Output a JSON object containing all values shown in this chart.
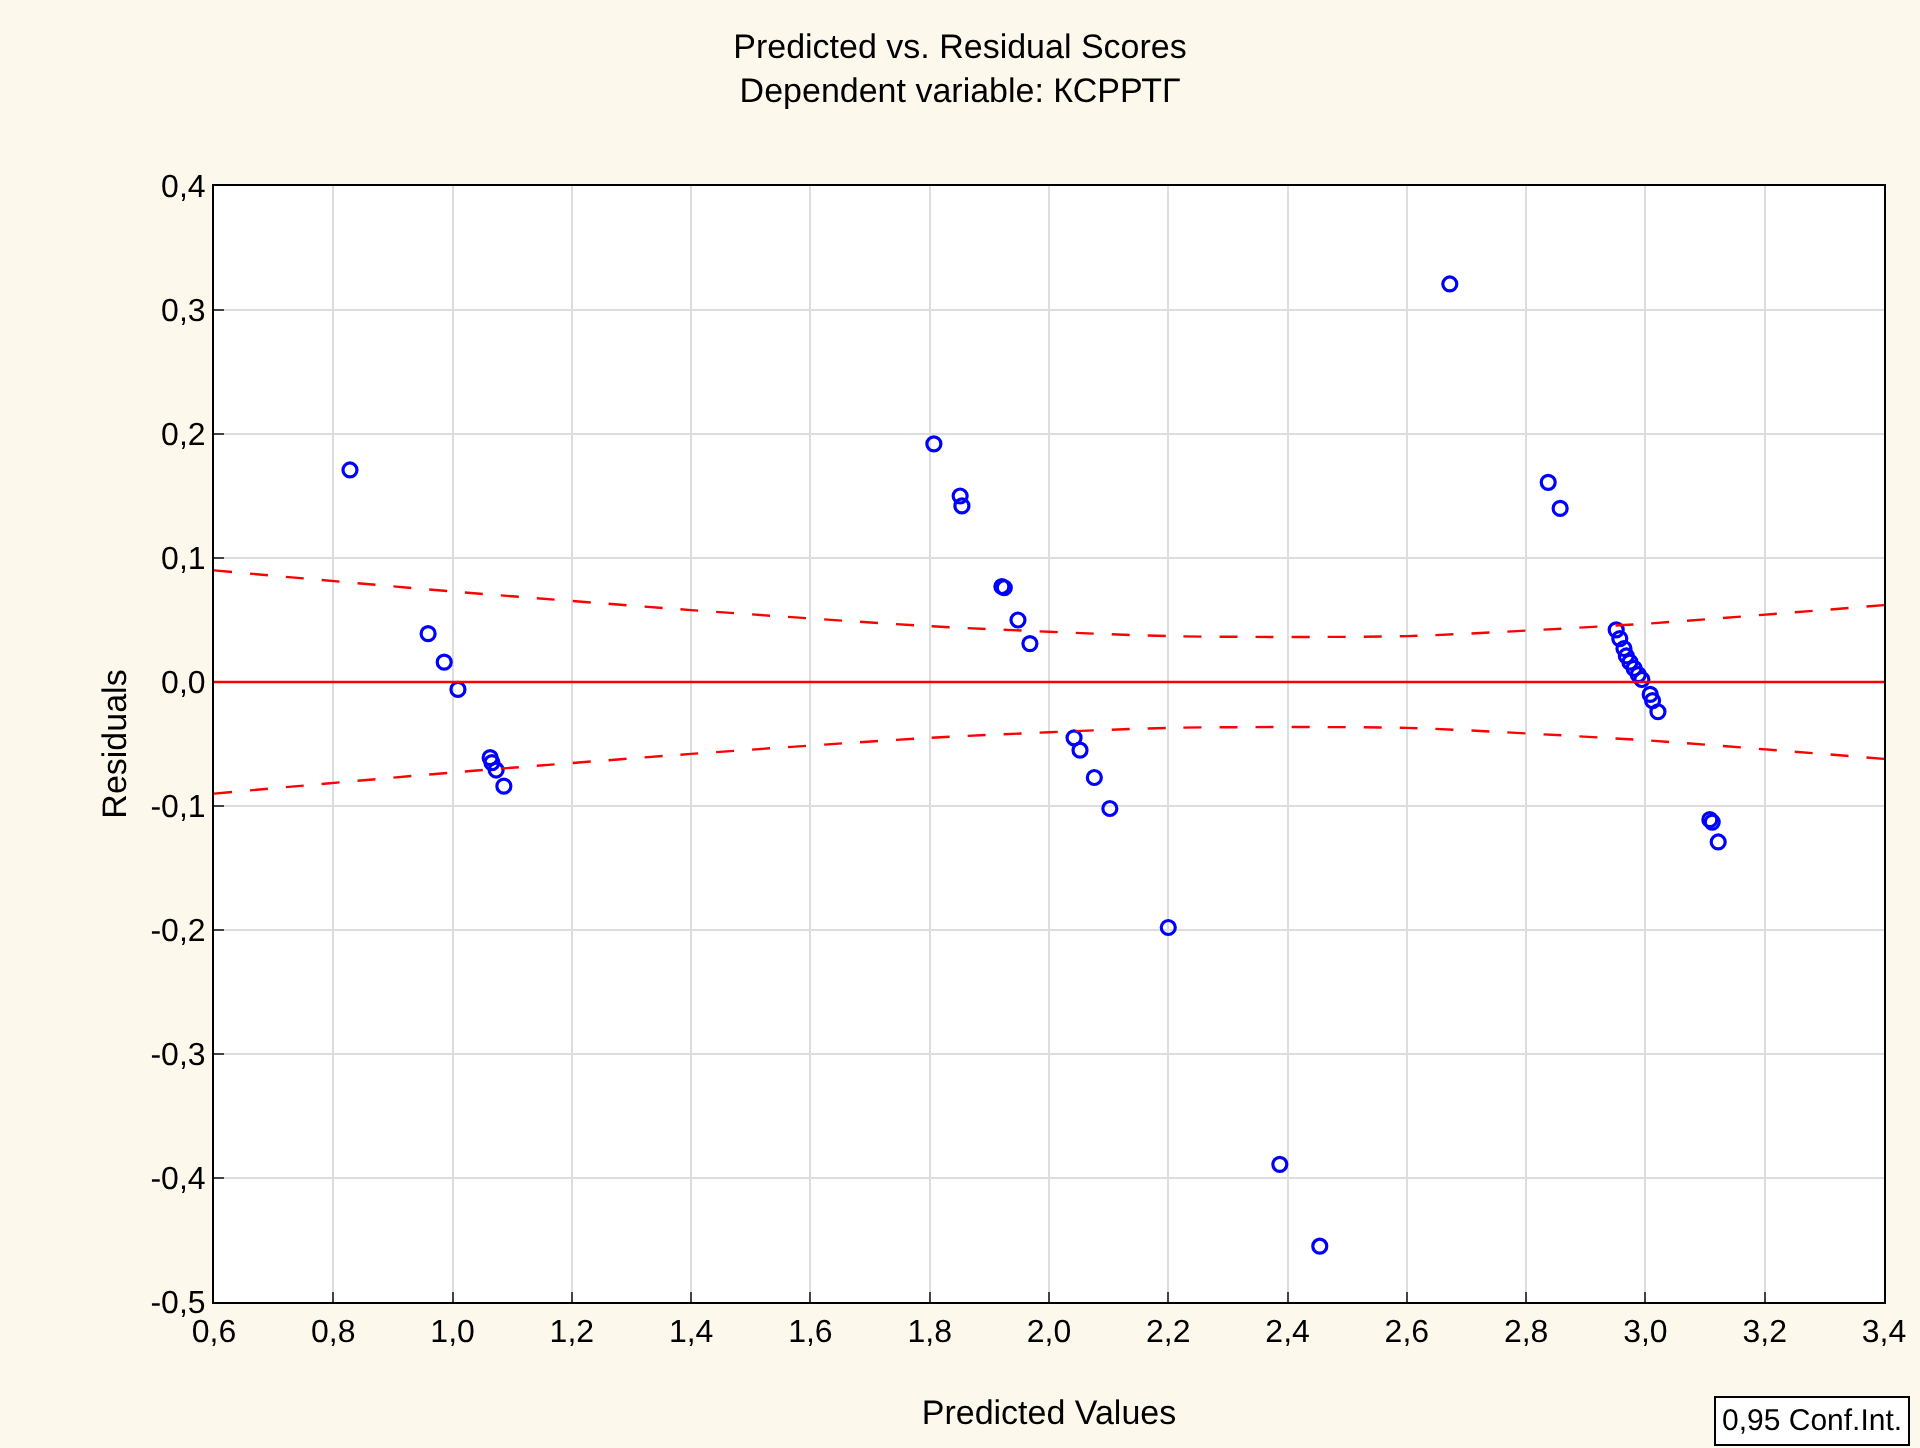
{
  "chart_data": {
    "type": "scatter",
    "title": "Predicted vs. Residual Scores",
    "subtitle": "Dependent variable: КСРРТГ",
    "xlabel": "Predicted Values",
    "ylabel": "Residuals",
    "xlim": [
      0.6,
      3.4
    ],
    "ylim": [
      -0.5,
      0.4
    ],
    "xticks": [
      {
        "value": 0.6,
        "label": "0,6"
      },
      {
        "value": 0.8,
        "label": "0,8"
      },
      {
        "value": 1.0,
        "label": "1,0"
      },
      {
        "value": 1.2,
        "label": "1,2"
      },
      {
        "value": 1.4,
        "label": "1,4"
      },
      {
        "value": 1.6,
        "label": "1,6"
      },
      {
        "value": 1.8,
        "label": "1,8"
      },
      {
        "value": 2.0,
        "label": "2,0"
      },
      {
        "value": 2.2,
        "label": "2,2"
      },
      {
        "value": 2.4,
        "label": "2,4"
      },
      {
        "value": 2.6,
        "label": "2,6"
      },
      {
        "value": 2.8,
        "label": "2,8"
      },
      {
        "value": 3.0,
        "label": "3,0"
      },
      {
        "value": 3.2,
        "label": "3,2"
      },
      {
        "value": 3.4,
        "label": "3,4"
      }
    ],
    "yticks": [
      {
        "value": -0.5,
        "label": "-0,5"
      },
      {
        "value": -0.4,
        "label": "-0,4"
      },
      {
        "value": -0.3,
        "label": "-0,3"
      },
      {
        "value": -0.2,
        "label": "-0,2"
      },
      {
        "value": -0.1,
        "label": "-0,1"
      },
      {
        "value": 0,
        "label": "0,0"
      },
      {
        "value": 0.1,
        "label": "0,1"
      },
      {
        "value": 0.2,
        "label": "0,2"
      },
      {
        "value": 0.3,
        "label": "0,3"
      },
      {
        "value": 0.4,
        "label": "0,4"
      }
    ],
    "grid": true,
    "marker": "circle",
    "ref_lines": [
      {
        "axis": "y",
        "value": 0,
        "color": "#ff0000"
      }
    ],
    "annotations": [
      "0,95 Conf.Int."
    ],
    "series": [
      {
        "color": "#0000ff",
        "x": [
          0.828,
          0.959,
          0.986,
          1.009,
          1.063,
          1.066,
          1.073,
          1.086,
          1.807,
          1.851,
          1.854,
          1.921,
          1.925,
          1.948,
          1.968,
          2.042,
          2.052,
          2.076,
          2.102,
          2.2,
          2.387,
          2.454,
          2.672,
          2.837,
          2.857,
          2.951,
          2.957,
          2.964,
          2.968,
          2.974,
          2.981,
          2.988,
          2.994,
          3.008,
          3.012,
          3.021,
          3.108,
          3.112,
          3.122
        ],
        "values": [
          0.171,
          0.039,
          0.016,
          -0.006,
          -0.061,
          -0.065,
          -0.071,
          -0.084,
          0.192,
          0.15,
          0.142,
          0.077,
          0.076,
          0.05,
          0.031,
          -0.045,
          -0.055,
          -0.077,
          -0.102,
          -0.198,
          -0.389,
          -0.455,
          0.321,
          0.161,
          0.14,
          0.042,
          0.035,
          0.027,
          0.021,
          0.016,
          0.011,
          0.006,
          0.002,
          -0.01,
          -0.015,
          -0.024,
          -0.111,
          -0.113,
          -0.129
        ]
      },
      {
        "type": "line",
        "color": "#ff0000",
        "line_style": "dashed",
        "marker": "none",
        "x": [
          0.6,
          1.0,
          1.4,
          1.8,
          2.2,
          2.6,
          3.0,
          3.4
        ],
        "values": [
          0.09,
          0.073,
          0.058,
          0.045,
          0.037,
          0.037,
          0.047,
          0.062
        ]
      },
      {
        "type": "line",
        "color": "#ff0000",
        "line_style": "dashed",
        "marker": "none",
        "x": [
          0.6,
          1.0,
          1.4,
          1.8,
          2.2,
          2.6,
          3.0,
          3.4
        ],
        "values": [
          -0.09,
          -0.073,
          -0.058,
          -0.045,
          -0.037,
          -0.037,
          -0.047,
          -0.062
        ]
      }
    ]
  }
}
